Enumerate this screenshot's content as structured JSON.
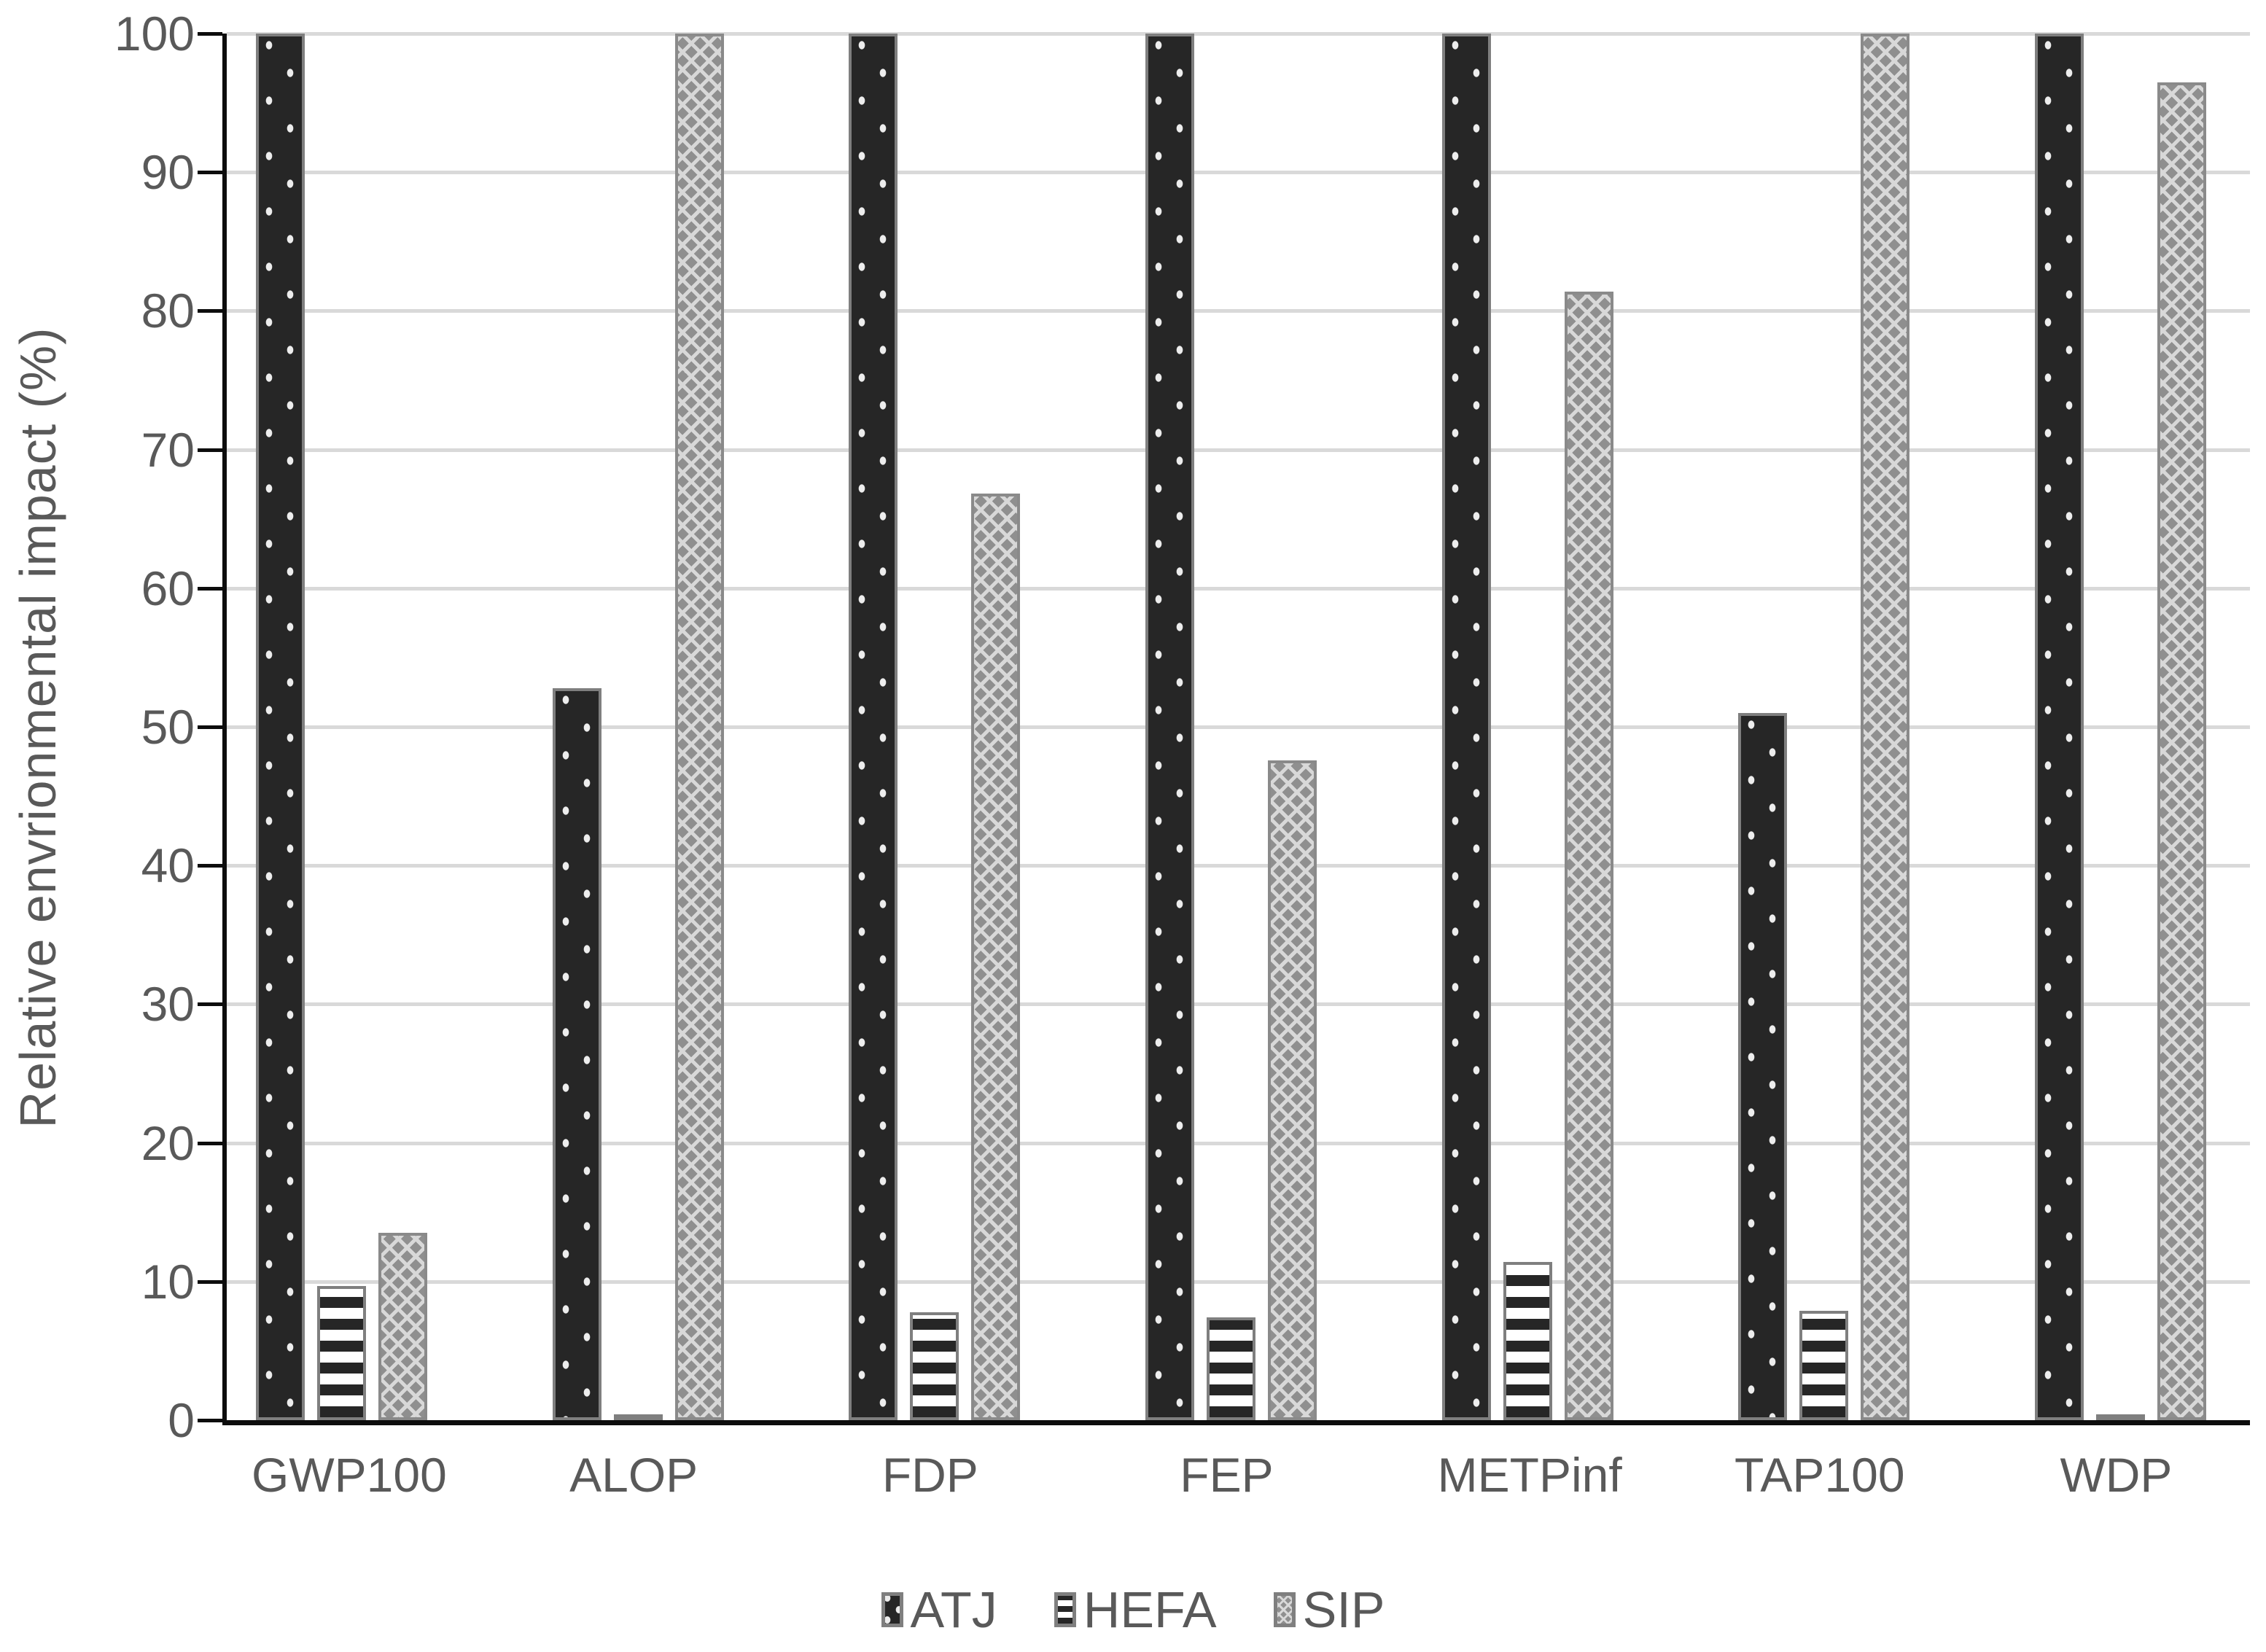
{
  "chart_data": {
    "type": "bar",
    "title": "",
    "xlabel": "",
    "ylabel": "Relative envrionmental impact (%)",
    "ylim": [
      0,
      100
    ],
    "ytick_step": 10,
    "ytick_labels": [
      "0",
      "10",
      "20",
      "30",
      "40",
      "50",
      "60",
      "70",
      "80",
      "90",
      "100"
    ],
    "grid": "horizontal gridlines, light gray",
    "legend_position": "bottom-center",
    "categories": [
      "GWP100",
      "ALOP",
      "FDP",
      "FEP",
      "METPinf",
      "TAP100",
      "WDP"
    ],
    "series": [
      {
        "name": "ATJ",
        "pattern": "dark fill with white dots",
        "values": [
          100,
          52.8,
          100,
          100,
          100,
          51.0,
          100
        ]
      },
      {
        "name": "HEFA",
        "pattern": "black-and-white horizontal stripes",
        "values": [
          9.7,
          0.2,
          7.8,
          7.4,
          11.4,
          7.9,
          0.2
        ]
      },
      {
        "name": "SIP",
        "pattern": "gray weave crosshatch",
        "values": [
          13.5,
          100,
          66.8,
          47.6,
          81.4,
          100,
          96.5
        ]
      }
    ],
    "colors": {
      "atj_fill": "#262626",
      "atj_dot": "#ededed",
      "hefa_stripe": "#262626",
      "hefa_bg": "#ffffff",
      "sip_fill": "#8f8f8f",
      "sip_pattern": "#d8d8d8",
      "bar_border": "#7f7f7f",
      "axis": "#0d0d0d",
      "gridline": "#d9d9d9",
      "text": "#595959"
    }
  }
}
